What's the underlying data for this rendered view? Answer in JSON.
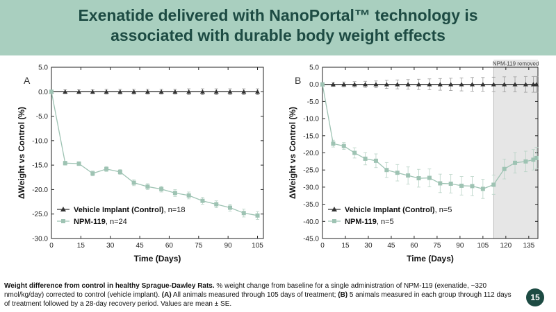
{
  "header": {
    "title_line1": "Exenatide delivered with NanoPortal™ technology is",
    "title_line2": "associated with durable body weight effects"
  },
  "colors": {
    "banner": "#a9cfbf",
    "title": "#1d4b43",
    "vehicle": "#333333",
    "npm": "#9ec3b3"
  },
  "chart_data": [
    {
      "type": "line",
      "panel_label": "A",
      "xlabel": "Time (Days)",
      "ylabel": "ΔWeight vs Control (%)",
      "xlim": [
        0,
        108
      ],
      "ylim": [
        -30,
        5
      ],
      "xticks": [
        0,
        15,
        30,
        45,
        60,
        75,
        90,
        105
      ],
      "yticks": [
        5.0,
        0.0,
        -5.0,
        -10.0,
        -15.0,
        -20.0,
        -25.0,
        -30.0
      ],
      "series": [
        {
          "key": "vehicle",
          "name_bold": "Vehicle Implant (Control)",
          "name_suffix": ", n=18",
          "marker": "triangle",
          "x": [
            0,
            7,
            14,
            21,
            28,
            35,
            42,
            49,
            56,
            63,
            70,
            77,
            84,
            91,
            98,
            105
          ],
          "y": [
            0,
            0,
            0,
            0,
            0,
            0,
            0,
            0,
            0,
            0,
            0,
            0,
            0,
            0,
            0,
            0
          ],
          "err": [
            0.3,
            0.4,
            0.4,
            0.4,
            0.5,
            0.5,
            0.5,
            0.5,
            0.5,
            0.5,
            0.6,
            0.6,
            0.6,
            0.6,
            0.6,
            0.6
          ]
        },
        {
          "key": "npm",
          "name_bold": "NPM-119",
          "name_suffix": ", n=24",
          "marker": "square",
          "x": [
            0,
            7,
            14,
            21,
            28,
            35,
            42,
            49,
            56,
            63,
            70,
            77,
            84,
            91,
            98,
            105
          ],
          "y": [
            0,
            -14.6,
            -14.7,
            -16.7,
            -15.8,
            -16.4,
            -18.6,
            -19.4,
            -19.9,
            -20.7,
            -21.2,
            -22.3,
            -23.0,
            -23.7,
            -24.8,
            -25.3
          ],
          "err": [
            0.2,
            0.4,
            0.4,
            0.5,
            0.5,
            0.5,
            0.6,
            0.6,
            0.6,
            0.7,
            0.7,
            0.7,
            0.7,
            0.7,
            0.8,
            0.8
          ]
        }
      ]
    },
    {
      "type": "line",
      "panel_label": "B",
      "xlabel": "Time (Days)",
      "ylabel": "ΔWeight vs Control (%)",
      "xlim": [
        0,
        141
      ],
      "ylim": [
        -45,
        5
      ],
      "xticks": [
        0,
        15,
        30,
        45,
        60,
        75,
        90,
        105,
        120,
        135
      ],
      "yticks": [
        5.0,
        0.0,
        -5.0,
        -10.0,
        -15.0,
        -20.0,
        -25.0,
        -30.0,
        -35.0,
        -40.0,
        -45.0
      ],
      "shaded_region": {
        "x_start": 112,
        "x_end": 141,
        "label": "NPM-119 removed"
      },
      "series": [
        {
          "key": "vehicle",
          "name_bold": "Vehicle Implant (Control)",
          "name_suffix": ", n=5",
          "marker": "triangle",
          "x": [
            0,
            7,
            14,
            21,
            28,
            35,
            42,
            49,
            56,
            63,
            70,
            77,
            84,
            91,
            98,
            105,
            112,
            119,
            126,
            133,
            138,
            140
          ],
          "y": [
            0,
            0,
            0,
            0,
            0,
            0,
            0,
            0,
            0,
            0,
            0,
            0,
            0,
            0,
            0,
            0,
            0,
            0,
            0,
            0,
            0,
            0
          ],
          "err": [
            0.5,
            0.6,
            0.7,
            0.8,
            0.9,
            1.0,
            1.2,
            1.3,
            1.4,
            1.5,
            1.6,
            1.7,
            1.8,
            1.9,
            2.0,
            2.0,
            2.1,
            2.2,
            2.2,
            2.3,
            2.3,
            2.3
          ]
        },
        {
          "key": "npm",
          "name_bold": "NPM-119",
          "name_suffix": ", n=5",
          "marker": "square",
          "x": [
            0,
            7,
            14,
            21,
            28,
            35,
            42,
            49,
            56,
            63,
            70,
            77,
            84,
            91,
            98,
            105,
            112,
            119,
            126,
            133,
            138,
            140
          ],
          "y": [
            0,
            -17.3,
            -18.0,
            -20.0,
            -21.7,
            -22.3,
            -25.0,
            -25.8,
            -26.6,
            -27.4,
            -27.3,
            -28.9,
            -29.0,
            -29.6,
            -29.7,
            -30.5,
            -29.3,
            -24.7,
            -22.9,
            -22.5,
            -22.0,
            -21.5
          ],
          "err": [
            0.4,
            1.0,
            1.0,
            1.5,
            1.8,
            2.0,
            2.2,
            2.4,
            2.5,
            2.6,
            2.6,
            2.7,
            2.7,
            2.7,
            2.8,
            2.8,
            2.8,
            2.9,
            3.0,
            3.0,
            3.0,
            3.1
          ]
        }
      ]
    }
  ],
  "caption": {
    "bold_lead": "Weight difference from control in healthy Sprague-Dawley Rats.",
    "text1": " % weight change from baseline for a single administration of NPM-119 (exenatide, ~320 nmol/kg/day) corrected to control (vehicle implant). ",
    "label_a": "(A)",
    "text2": " All animals measured through 105 days of treatment; ",
    "label_b": "(B)",
    "text3": " 5 animals measured in each group through 112 days of treatment followed by a 28-day recovery period. Values are mean ± SE."
  },
  "page_number": "15"
}
